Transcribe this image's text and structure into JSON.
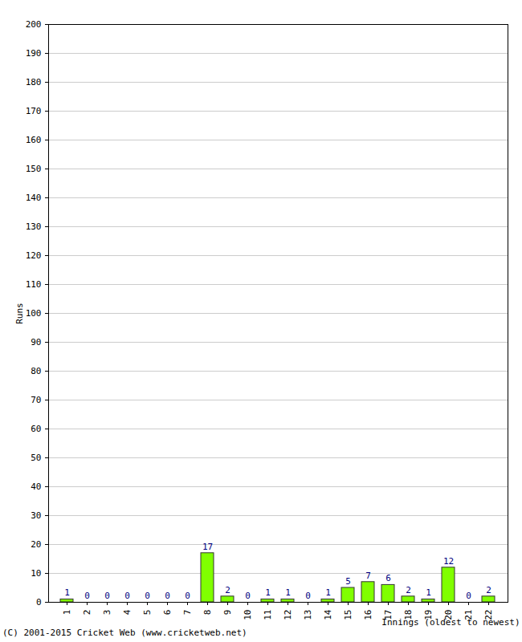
{
  "chart_data": {
    "type": "bar",
    "categories": [
      "1",
      "2",
      "3",
      "4",
      "5",
      "6",
      "7",
      "8",
      "9",
      "10",
      "11",
      "12",
      "13",
      "14",
      "15",
      "16",
      "17",
      "18",
      "19",
      "20",
      "21",
      "22"
    ],
    "values": [
      1,
      0,
      0,
      0,
      0,
      0,
      0,
      17,
      2,
      0,
      1,
      1,
      0,
      1,
      5,
      7,
      6,
      2,
      1,
      12,
      0,
      2
    ],
    "color": "#80ff00",
    "x_label": "Innings (oldest to newest)",
    "y_label": "Runs",
    "caption": "(C) 2001-2015 Cricket Web (www.cricketweb.net)",
    "ylim": [
      0,
      200
    ],
    "yticks": [
      0,
      10,
      20,
      30,
      40,
      50,
      60,
      70,
      80,
      90,
      100,
      110,
      120,
      130,
      140,
      150,
      160,
      170,
      180,
      190,
      200
    ],
    "grid": true,
    "data_labels": true
  }
}
